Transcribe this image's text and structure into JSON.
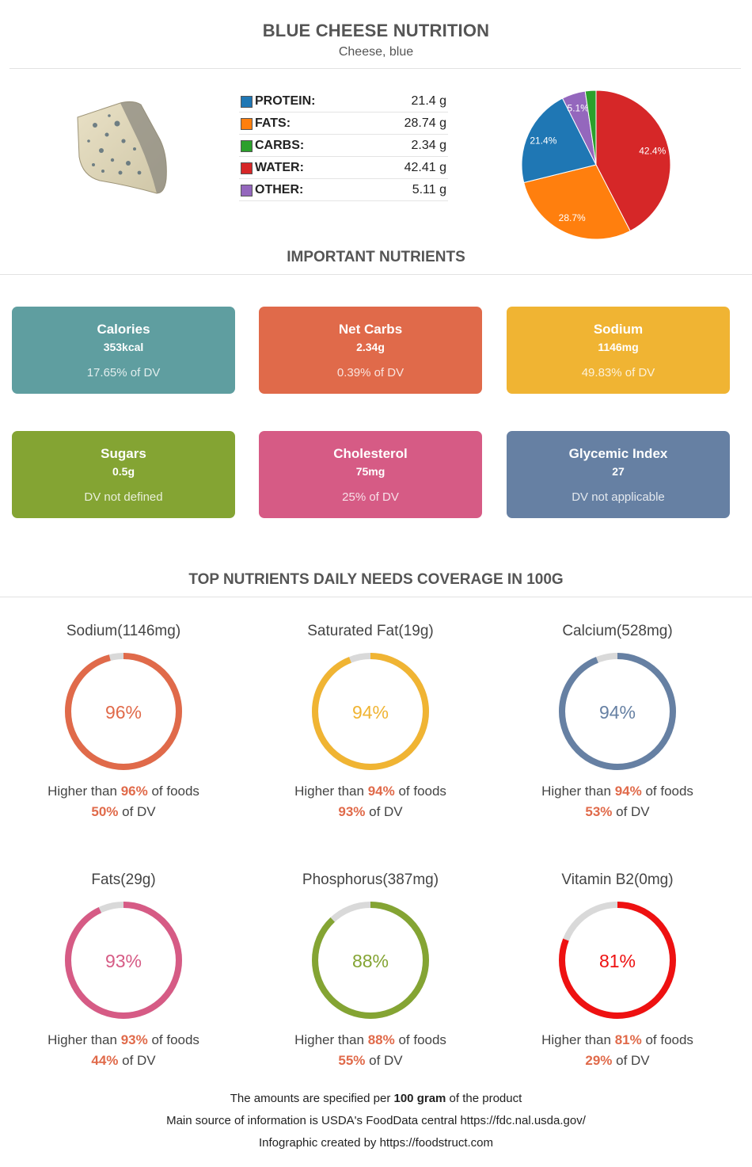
{
  "header": {
    "title": "BLUE CHEESE NUTRITION",
    "subtitle": "Cheese, blue"
  },
  "macros": [
    {
      "label": "PROTEIN:",
      "value": "21.4 g",
      "color": "#1f77b4"
    },
    {
      "label": "FATS:",
      "value": "28.74 g",
      "color": "#ff7f0e"
    },
    {
      "label": "CARBS:",
      "value": "2.34 g",
      "color": "#2ca02c"
    },
    {
      "label": "WATER:",
      "value": "42.41 g",
      "color": "#d62728"
    },
    {
      "label": "OTHER:",
      "value": "5.11 g",
      "color": "#9467bd"
    }
  ],
  "chart_data": {
    "type": "pie",
    "slices": [
      {
        "name": "Water",
        "value": 42.41,
        "label": "42.4%",
        "color": "#d62728"
      },
      {
        "name": "Fats",
        "value": 28.74,
        "label": "28.7%",
        "color": "#ff7f0e"
      },
      {
        "name": "Protein",
        "value": 21.4,
        "label": "21.4%",
        "color": "#1f77b4"
      },
      {
        "name": "Other",
        "value": 5.11,
        "label": "5.1%",
        "color": "#9467bd"
      },
      {
        "name": "Carbs",
        "value": 2.34,
        "label": "",
        "color": "#2ca02c"
      }
    ]
  },
  "important": {
    "title": "IMPORTANT NUTRIENTS",
    "cards": [
      {
        "name": "Calories",
        "value": "353kcal",
        "dv": "17.65% of DV",
        "color": "#5f9ea0"
      },
      {
        "name": "Net Carbs",
        "value": "2.34g",
        "dv": "0.39% of DV",
        "color": "#e06a4a"
      },
      {
        "name": "Sodium",
        "value": "1146mg",
        "dv": "49.83% of DV",
        "color": "#f0b433"
      },
      {
        "name": "Sugars",
        "value": "0.5g",
        "dv": "DV not defined",
        "color": "#84a433"
      },
      {
        "name": "Cholesterol",
        "value": "75mg",
        "dv": "25% of DV",
        "color": "#d65b85"
      },
      {
        "name": "Glycemic Index",
        "value": "27",
        "dv": "DV not applicable",
        "color": "#6680a3"
      }
    ]
  },
  "coverage": {
    "title": "TOP NUTRIENTS DAILY NEEDS COVERAGE IN 100G",
    "higher_prefix": "Higher than ",
    "higher_suffix": " of foods",
    "dv_suffix": " of DV",
    "items": [
      {
        "name": "Sodium(1146mg)",
        "percentile": 96,
        "percentile_label": "96%",
        "dv": "50%",
        "color": "#e06a4a"
      },
      {
        "name": "Saturated Fat(19g)",
        "percentile": 94,
        "percentile_label": "94%",
        "dv": "93%",
        "color": "#f0b433"
      },
      {
        "name": "Calcium(528mg)",
        "percentile": 94,
        "percentile_label": "94%",
        "dv": "53%",
        "color": "#6680a3"
      },
      {
        "name": "Fats(29g)",
        "percentile": 93,
        "percentile_label": "93%",
        "dv": "44%",
        "color": "#d65b85"
      },
      {
        "name": "Phosphorus(387mg)",
        "percentile": 88,
        "percentile_label": "88%",
        "dv": "55%",
        "color": "#84a433"
      },
      {
        "name": "Vitamin B2(0mg)",
        "percentile": 81,
        "percentile_label": "81%",
        "dv": "29%",
        "color": "#ee1111"
      }
    ]
  },
  "footer": {
    "line1_prefix": "The amounts are specified per ",
    "line1_bold": "100 gram",
    "line1_suffix": " of the product",
    "line2": "Main source of information is USDA's FoodData central https://fdc.nal.usda.gov/",
    "line3": "Infographic created by https://foodstruct.com"
  }
}
